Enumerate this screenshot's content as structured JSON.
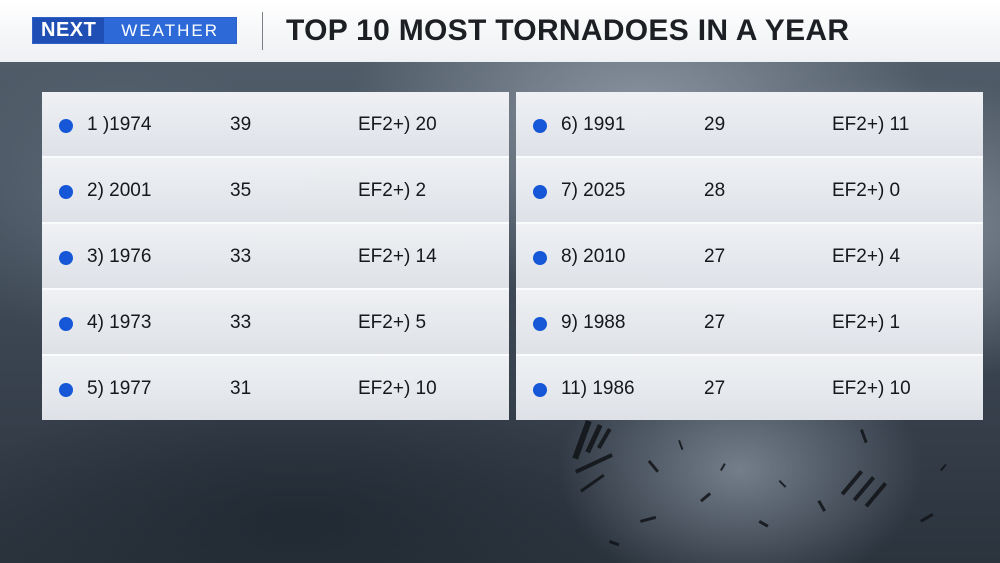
{
  "header": {
    "logo_next": "NEXT",
    "logo_weather": "WEATHER",
    "title": "TOP 10 MOST TORNADOES IN A YEAR"
  },
  "colors": {
    "accent": "#1557d6",
    "logo_dark": "#1f4fb4",
    "logo_light": "#2d6ad8"
  },
  "rows_left": [
    {
      "rank_year": "1 )1974",
      "count": "39",
      "ef2": "EF2+) 20"
    },
    {
      "rank_year": "2) 2001",
      "count": "35",
      "ef2": "EF2+) 2"
    },
    {
      "rank_year": "3) 1976",
      "count": "33",
      "ef2": "EF2+) 14"
    },
    {
      "rank_year": "4) 1973",
      "count": "33",
      "ef2": "EF2+) 5"
    },
    {
      "rank_year": "5) 1977",
      "count": "31",
      "ef2": "EF2+) 10"
    }
  ],
  "rows_right": [
    {
      "rank_year": "6) 1991",
      "count": "29",
      "ef2": "EF2+) 11"
    },
    {
      "rank_year": "7) 2025",
      "count": "28",
      "ef2": "EF2+) 0"
    },
    {
      "rank_year": "8) 2010",
      "count": "27",
      "ef2": "EF2+) 4"
    },
    {
      "rank_year": "9) 1988",
      "count": "27",
      "ef2": "EF2+) 1"
    },
    {
      "rank_year": "11) 1986",
      "count": "27",
      "ef2": "EF2+) 10"
    }
  ]
}
